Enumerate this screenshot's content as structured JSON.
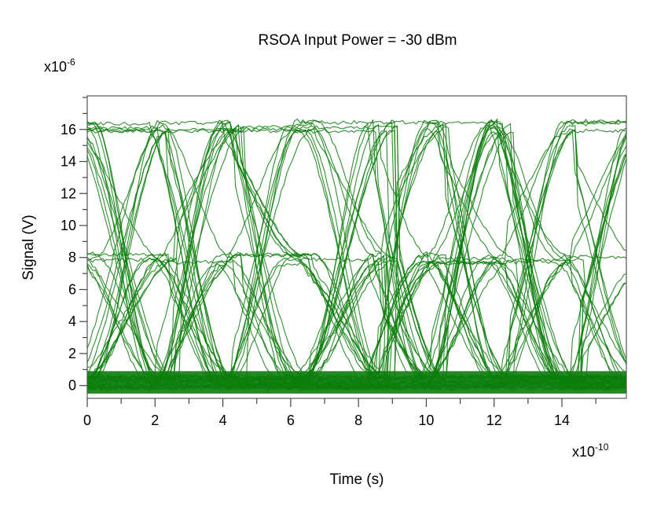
{
  "chart_data": {
    "type": "line",
    "subtype": "eye-diagram",
    "title": "RSOA Input Power = -30 dBm",
    "xlabel": "Time (s)",
    "ylabel": "Signal (V)",
    "x_multiplier": "x10",
    "x_multiplier_exp": "-10",
    "y_multiplier": "x10",
    "y_multiplier_exp": "-6",
    "xlim": [
      0,
      15.9
    ],
    "ylim": [
      -0.8,
      18.1
    ],
    "xticks": [
      0,
      2,
      4,
      6,
      8,
      10,
      12,
      14
    ],
    "yticks": [
      0,
      2,
      4,
      6,
      8,
      10,
      12,
      14,
      16
    ],
    "x_minor_step": 1,
    "y_minor_step": 1,
    "grid": false,
    "legend": null,
    "line_color": "#0b7d0b",
    "signal_levels": [
      0.2,
      7.9,
      16.2
    ],
    "level_spread": [
      0.7,
      0.6,
      0.6
    ],
    "bit_period": 4.0,
    "transition_centers": [
      1.0,
      3.0,
      5.0,
      7.5,
      9.0,
      11.0,
      13.0,
      15.0
    ],
    "approx_eye_openings": [
      {
        "x_center": 2.0,
        "between_levels": [
          0.2,
          7.9
        ]
      },
      {
        "x_center": 5.5,
        "between_levels": [
          7.9,
          16.2
        ]
      },
      {
        "x_center": 10.0,
        "between_levels": [
          0.2,
          7.9
        ]
      },
      {
        "x_center": 13.0,
        "between_levels": [
          7.9,
          16.2
        ]
      }
    ],
    "trace_count": 60
  }
}
